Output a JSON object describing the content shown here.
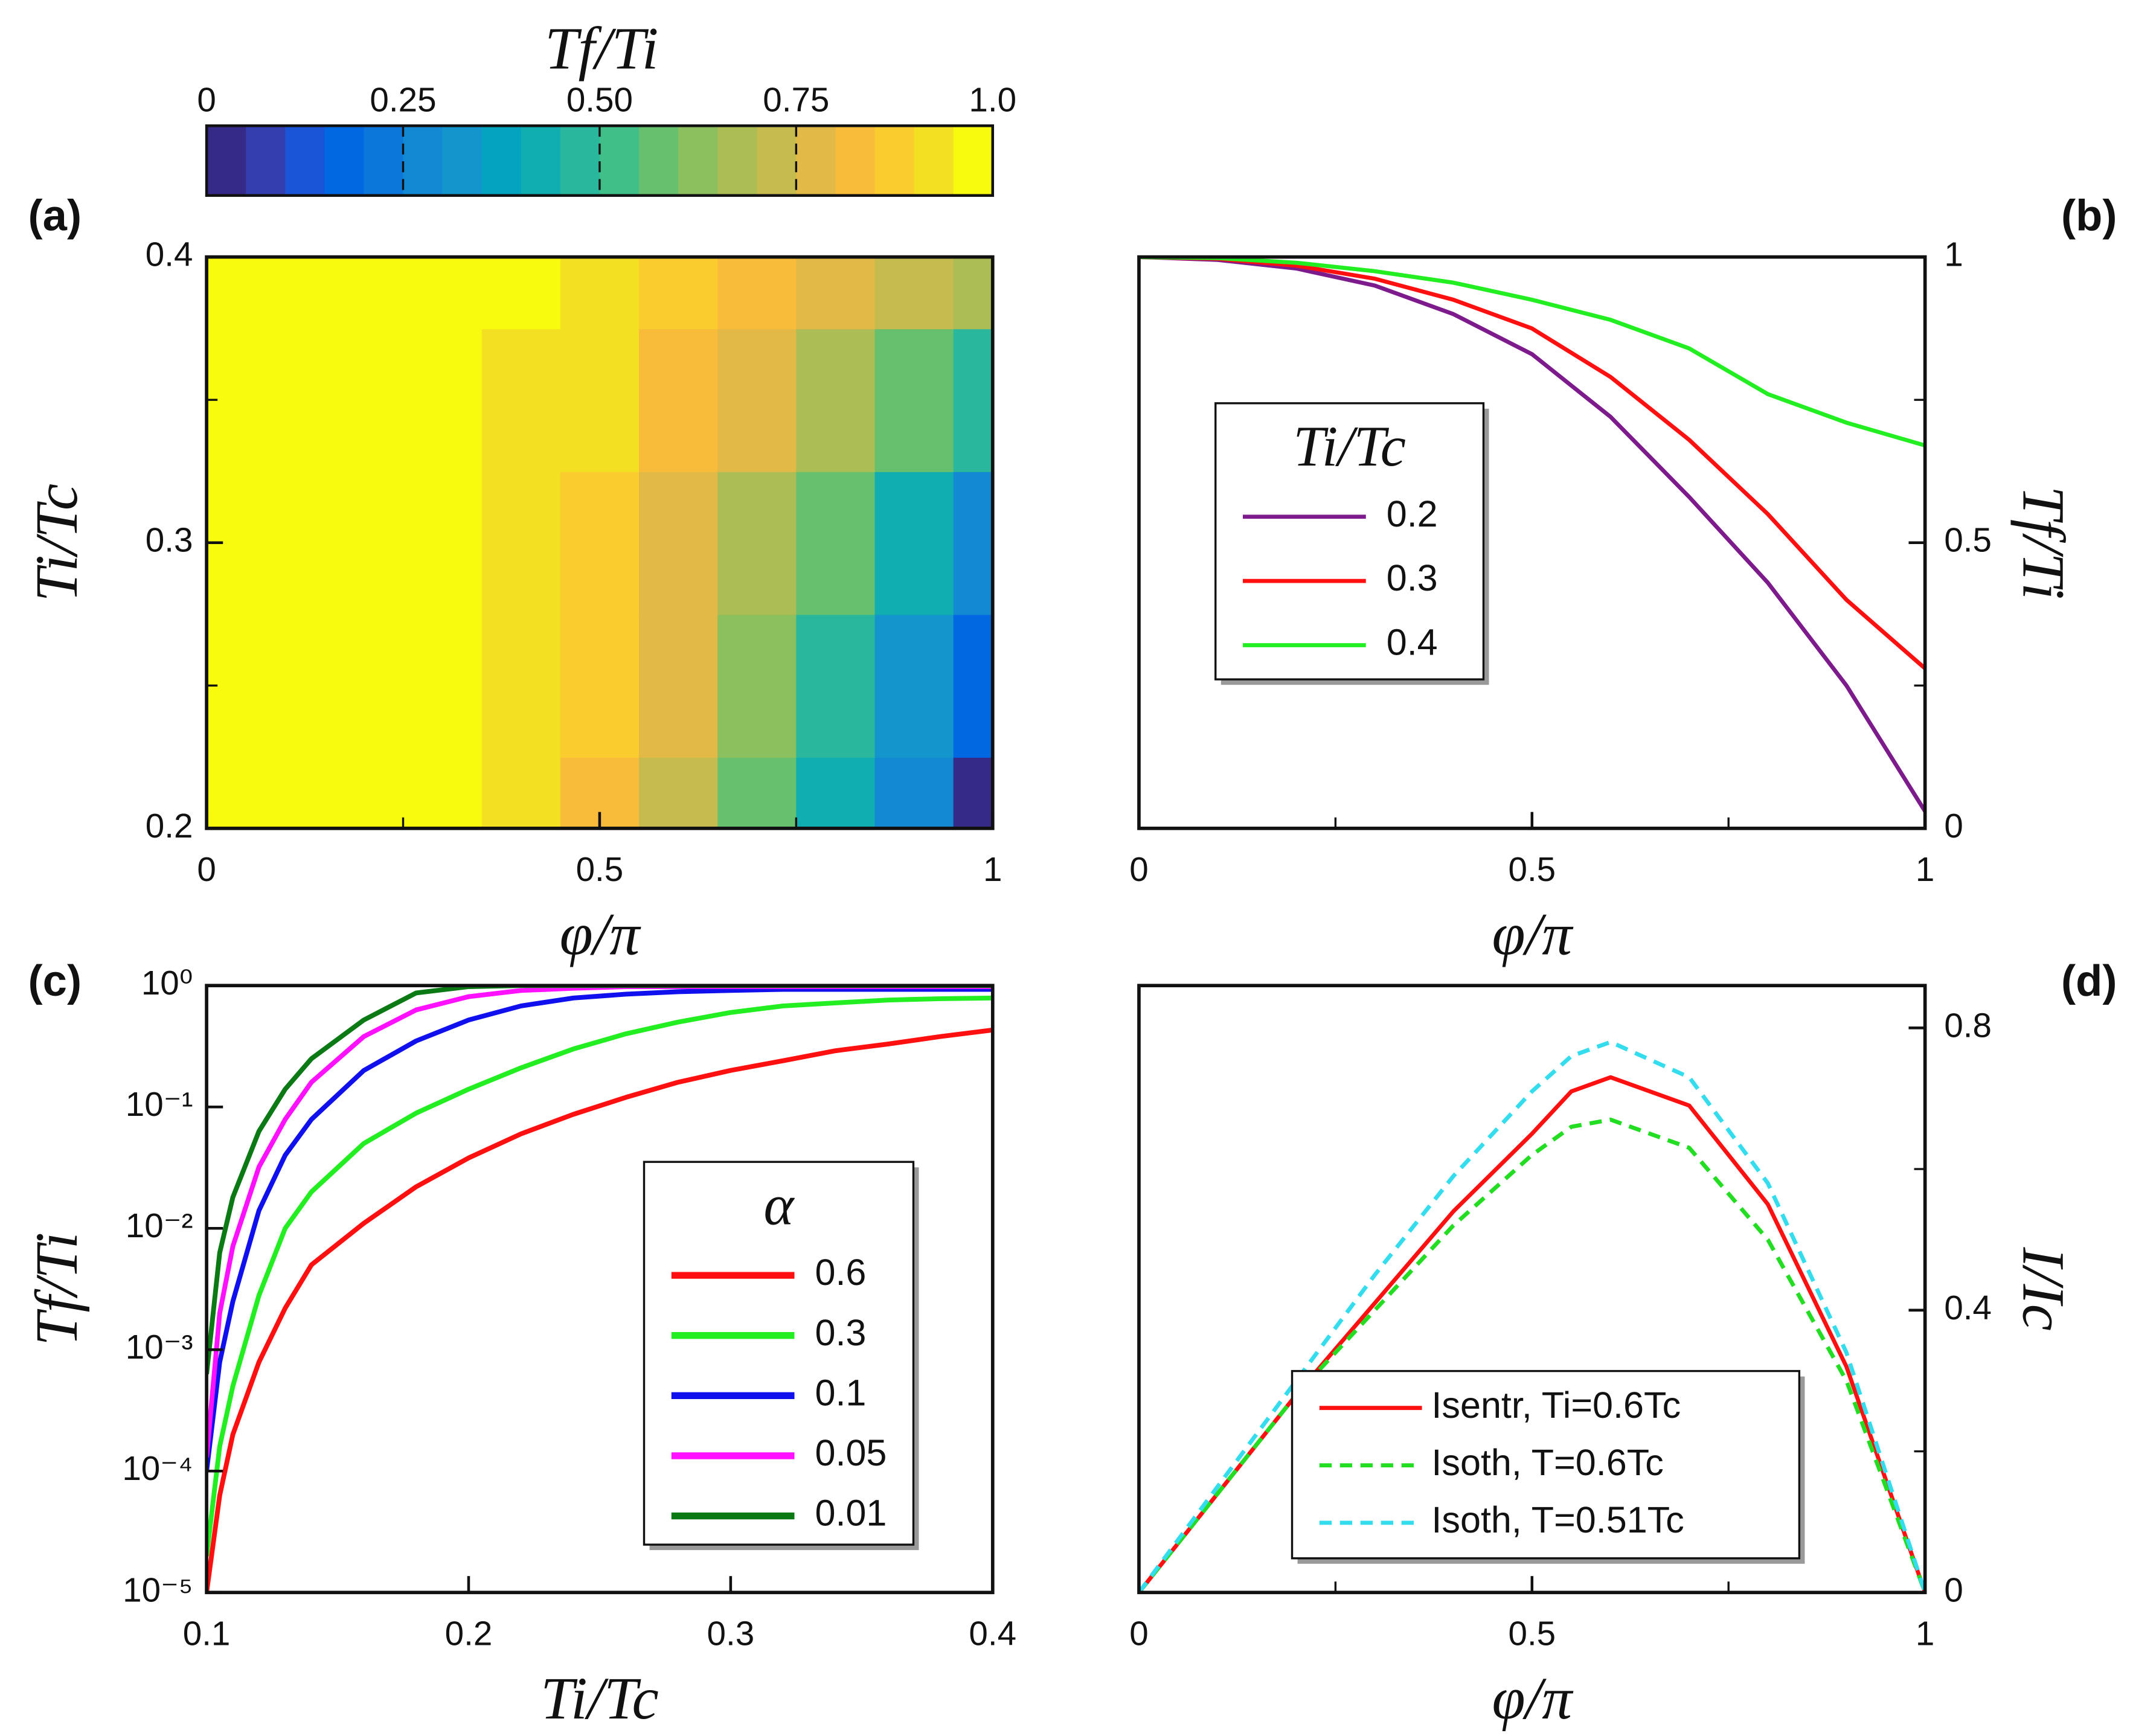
{
  "chart_data": [
    {
      "type": "contour",
      "panel_label": "(a)",
      "xlabel": "φ/π",
      "ylabel": "Ti/Tc",
      "x": [
        0,
        0.1,
        0.2,
        0.3,
        0.4,
        0.5,
        0.6,
        0.7,
        0.8,
        0.9,
        1
      ],
      "y": [
        0.2,
        0.25,
        0.3,
        0.35,
        0.4
      ],
      "z": [
        [
          1,
          0.995,
          0.98,
          0.95,
          0.9,
          0.83,
          0.72,
          0.58,
          0.43,
          0.25,
          0.03
        ],
        [
          1,
          0.996,
          0.983,
          0.956,
          0.912,
          0.85,
          0.755,
          0.63,
          0.485,
          0.315,
          0.15
        ],
        [
          1,
          0.997,
          0.985,
          0.962,
          0.925,
          0.875,
          0.79,
          0.68,
          0.55,
          0.4,
          0.28
        ],
        [
          1,
          0.998,
          0.988,
          0.968,
          0.94,
          0.9,
          0.84,
          0.765,
          0.66,
          0.55,
          0.48
        ],
        [
          1,
          0.998,
          0.99,
          0.975,
          0.955,
          0.925,
          0.89,
          0.84,
          0.76,
          0.71,
          0.67
        ]
      ],
      "xlim": [
        0,
        1
      ],
      "ylim": [
        0.2,
        0.4
      ],
      "xticks": [
        0,
        0.5,
        1
      ],
      "yticks": [
        0.2,
        0.3,
        0.4
      ],
      "xminor": [
        0.25,
        0.75
      ],
      "yminor": [
        0.25,
        0.35
      ],
      "colorbar": {
        "title": "Tf/Ti",
        "lim": [
          0,
          1
        ],
        "ticks": [
          0,
          0.25,
          {
            "value": 0.5,
            "label": "0.50"
          },
          0.75,
          {
            "value": 1,
            "label": "1.0"
          }
        ],
        "colors": [
          "#352a87",
          "#353eaf",
          "#1b55d7",
          "#0268e1",
          "#0c77da",
          "#1388d3",
          "#1496cc",
          "#04a4c1",
          "#10aeb0",
          "#29b89d",
          "#41bf88",
          "#67c06e",
          "#8cbf5e",
          "#abbd54",
          "#c6bb4e",
          "#e2b947",
          "#f9bb3a",
          "#fbcc2d",
          "#f4e022",
          "#f9fb0e"
        ]
      }
    },
    {
      "type": "line",
      "panel_label": "(b)",
      "xlabel": "φ/π",
      "ylabel": "Tf/Ti",
      "yaxis_side": "right",
      "x": [
        0,
        0.1,
        0.2,
        0.3,
        0.4,
        0.5,
        0.6,
        0.7,
        0.8,
        0.9,
        1
      ],
      "series": [
        {
          "name": "0.2",
          "color": "#7d1a8c",
          "values": [
            1,
            0.995,
            0.98,
            0.95,
            0.9,
            0.83,
            0.72,
            0.58,
            0.43,
            0.25,
            0.03
          ]
        },
        {
          "name": "0.3",
          "color": "#ff1010",
          "values": [
            1,
            0.997,
            0.985,
            0.962,
            0.925,
            0.875,
            0.79,
            0.68,
            0.55,
            0.4,
            0.28
          ]
        },
        {
          "name": "0.4",
          "color": "#22ee22",
          "values": [
            1,
            0.998,
            0.99,
            0.975,
            0.955,
            0.925,
            0.89,
            0.84,
            0.76,
            0.71,
            0.67
          ]
        }
      ],
      "legend_title": "Ti/Tc",
      "xlim": [
        0,
        1
      ],
      "ylim": [
        0,
        1
      ],
      "xticks": [
        0,
        0.5,
        1
      ],
      "yticks": [
        0,
        0.5,
        1
      ],
      "xminor": [
        0.25,
        0.75
      ],
      "yminor": [
        0.25,
        0.75
      ]
    },
    {
      "type": "line",
      "panel_label": "(c)",
      "xlabel": "Ti/Tc",
      "ylabel": "Tf/Ti",
      "ylog": true,
      "x": [
        0.1,
        0.105,
        0.11,
        0.12,
        0.13,
        0.14,
        0.16,
        0.18,
        0.2,
        0.22,
        0.24,
        0.26,
        0.28,
        0.3,
        0.32,
        0.34,
        0.36,
        0.38,
        0.4
      ],
      "series": [
        {
          "name": "0.6",
          "color": "#ff1010",
          "values": [
            1e-05,
            6.3e-05,
            0.0002,
            0.00079,
            0.0022,
            0.005,
            0.011,
            0.022,
            0.038,
            0.06,
            0.087,
            0.12,
            0.16,
            0.2,
            0.24,
            0.29,
            0.33,
            0.38,
            0.43
          ]
        },
        {
          "name": "0.3",
          "color": "#22ee22",
          "values": [
            2e-05,
            0.00016,
            0.0005,
            0.0028,
            0.01,
            0.02,
            0.05,
            0.089,
            0.14,
            0.21,
            0.3,
            0.4,
            0.5,
            0.6,
            0.68,
            0.72,
            0.76,
            0.78,
            0.79
          ]
        },
        {
          "name": "0.1",
          "color": "#1010ee",
          "values": [
            0.0001,
            0.00079,
            0.0025,
            0.014,
            0.04,
            0.079,
            0.2,
            0.35,
            0.52,
            0.68,
            0.79,
            0.85,
            0.89,
            0.91,
            0.93,
            0.93,
            0.93,
            0.93,
            0.93
          ]
        },
        {
          "name": "0.05",
          "color": "#ff10ff",
          "values": [
            0.00013,
            0.002,
            0.0071,
            0.032,
            0.079,
            0.16,
            0.38,
            0.63,
            0.81,
            0.91,
            0.95,
            0.98,
            0.98,
            0.98,
            0.98,
            0.98,
            0.98,
            0.98,
            0.98
          ]
        },
        {
          "name": "0.01",
          "color": "#0b7a14",
          "values": [
            0.00063,
            0.0063,
            0.018,
            0.063,
            0.14,
            0.25,
            0.52,
            0.87,
            0.98,
            1,
            1,
            1,
            1,
            1,
            1,
            1,
            1,
            1,
            1
          ]
        }
      ],
      "legend_title": "α",
      "xlim": [
        0.1,
        0.4
      ],
      "ylim": [
        1e-05,
        1
      ],
      "xticks": [
        0.1,
        0.2,
        0.3,
        0.4
      ],
      "yticks": [
        {
          "value": 1e-05,
          "label": "10⁻⁵"
        },
        {
          "value": 0.0001,
          "label": "10⁻⁴"
        },
        {
          "value": 0.001,
          "label": "10⁻³"
        },
        {
          "value": 0.01,
          "label": "10⁻²"
        },
        {
          "value": 0.1,
          "label": "10⁻¹"
        },
        {
          "value": 1,
          "label": "10⁰"
        }
      ]
    },
    {
      "type": "line",
      "panel_label": "(d)",
      "xlabel": "φ/π",
      "ylabel": "I/Ic",
      "yaxis_side": "right",
      "x": [
        0,
        0.1,
        0.2,
        0.3,
        0.4,
        0.5,
        0.55,
        0.6,
        0.7,
        0.8,
        0.9,
        1
      ],
      "series": [
        {
          "name": "Isentr, Ti=0.6Tc",
          "color": "#ff1010",
          "dash": false,
          "values": [
            0,
            0.14,
            0.28,
            0.41,
            0.54,
            0.65,
            0.71,
            0.73,
            0.69,
            0.55,
            0.32,
            0
          ]
        },
        {
          "name": "Isoth, T=0.6Tc",
          "color": "#22dd22",
          "dash": true,
          "values": [
            0,
            0.14,
            0.28,
            0.4,
            0.52,
            0.62,
            0.66,
            0.67,
            0.63,
            0.5,
            0.3,
            0
          ]
        },
        {
          "name": "Isoth, T=0.51Tc",
          "color": "#33ddee",
          "dash": true,
          "values": [
            0,
            0.15,
            0.3,
            0.45,
            0.59,
            0.71,
            0.76,
            0.78,
            0.73,
            0.58,
            0.34,
            0
          ]
        }
      ],
      "xlim": [
        0,
        1
      ],
      "ylim": [
        0,
        0.86
      ],
      "xticks": [
        0,
        0.5,
        1
      ],
      "yticks": [
        0,
        0.4,
        0.8
      ],
      "xminor": [
        0.25,
        0.75
      ],
      "yminor": [
        0.2,
        0.6
      ]
    }
  ]
}
